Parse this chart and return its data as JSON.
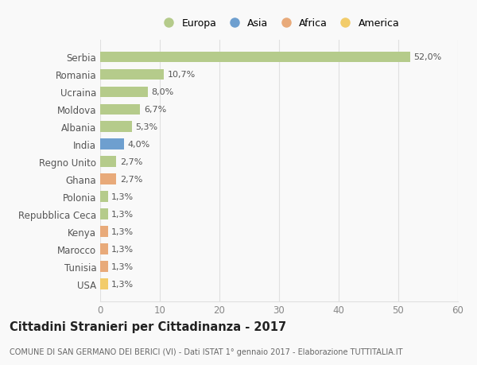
{
  "countries": [
    "Serbia",
    "Romania",
    "Ucraina",
    "Moldova",
    "Albania",
    "India",
    "Regno Unito",
    "Ghana",
    "Polonia",
    "Repubblica Ceca",
    "Kenya",
    "Marocco",
    "Tunisia",
    "USA"
  ],
  "values": [
    52.0,
    10.7,
    8.0,
    6.7,
    5.3,
    4.0,
    2.7,
    2.7,
    1.3,
    1.3,
    1.3,
    1.3,
    1.3,
    1.3
  ],
  "labels": [
    "52,0%",
    "10,7%",
    "8,0%",
    "6,7%",
    "5,3%",
    "4,0%",
    "2,7%",
    "2,7%",
    "1,3%",
    "1,3%",
    "1,3%",
    "1,3%",
    "1,3%",
    "1,3%"
  ],
  "colors": [
    "#b5cb8b",
    "#b5cb8b",
    "#b5cb8b",
    "#b5cb8b",
    "#b5cb8b",
    "#6e9fcf",
    "#b5cb8b",
    "#e8aa7a",
    "#b5cb8b",
    "#b5cb8b",
    "#e8aa7a",
    "#e8aa7a",
    "#e8aa7a",
    "#f2cc6a"
  ],
  "legend_labels": [
    "Europa",
    "Asia",
    "Africa",
    "America"
  ],
  "legend_colors": [
    "#b5cb8b",
    "#6e9fcf",
    "#e8aa7a",
    "#f2cc6a"
  ],
  "xlim": [
    0,
    60
  ],
  "xticks": [
    0,
    10,
    20,
    30,
    40,
    50,
    60
  ],
  "title": "Cittadini Stranieri per Cittadinanza - 2017",
  "subtitle": "COMUNE DI SAN GERMANO DEI BERICI (VI) - Dati ISTAT 1° gennaio 2017 - Elaborazione TUTTITALIA.IT",
  "bg_color": "#f9f9f9",
  "grid_color": "#e0e0e0",
  "bar_height": 0.6
}
